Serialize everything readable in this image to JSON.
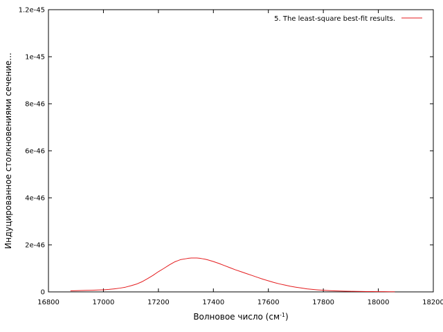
{
  "chart_data": {
    "type": "line",
    "title": "",
    "xlabel": "Волновое число (см",
    "xlabel_sup": "-1",
    "xlabel_suffix": ")",
    "ylabel": "Индуцированное столкновениями сечение...",
    "xlim": [
      16800,
      18200
    ],
    "ylim": [
      0,
      1.2e-45
    ],
    "x_ticks": [
      16800,
      17000,
      17200,
      17400,
      17600,
      17800,
      18000,
      18200
    ],
    "x_tick_labels": [
      "16800",
      "17000",
      "17200",
      "17400",
      "17600",
      "17800",
      "18000",
      "18200"
    ],
    "y_ticks": [
      0,
      2e-46,
      4e-46,
      6e-46,
      8e-46,
      1e-45,
      1.2e-45
    ],
    "y_tick_labels": [
      "0",
      "2e-46",
      "4e-46",
      "6e-46",
      "8e-46",
      "1e-45",
      "1.2e-45"
    ],
    "grid": false,
    "legend_position": "top-right",
    "series": [
      {
        "name": "5.  The least-square best-fit results.",
        "color": "#e41a1c",
        "x": [
          16880,
          16900,
          16920,
          16940,
          16960,
          16980,
          17000,
          17020,
          17040,
          17060,
          17080,
          17100,
          17120,
          17140,
          17160,
          17180,
          17200,
          17220,
          17240,
          17260,
          17280,
          17300,
          17310,
          17320,
          17330,
          17340,
          17350,
          17360,
          17370,
          17380,
          17400,
          17420,
          17440,
          17460,
          17480,
          17500,
          17520,
          17540,
          17560,
          17580,
          17600,
          17620,
          17640,
          17660,
          17680,
          17700,
          17720,
          17740,
          17760,
          17780,
          17800,
          17820,
          17840,
          17860,
          17880,
          17900,
          17920,
          17940,
          17960,
          17980,
          18000,
          18020,
          18040,
          18060
        ],
        "y": [
          4.5e-48,
          5e-48,
          6e-48,
          6.5e-48,
          7e-48,
          8e-48,
          9e-48,
          1.05e-47,
          1.3e-47,
          1.6e-47,
          2e-47,
          2.6e-47,
          3.3e-47,
          4.3e-47,
          5.6e-47,
          7e-47,
          8.6e-47,
          1e-46,
          1.15e-46,
          1.28e-46,
          1.37e-46,
          1.41e-46,
          1.43e-46,
          1.44e-46,
          1.44e-46,
          1.44e-46,
          1.43e-46,
          1.41e-46,
          1.39e-46,
          1.36e-46,
          1.29e-46,
          1.21e-46,
          1.12e-46,
          1.03e-46,
          9.4e-47,
          8.6e-47,
          7.8e-47,
          7e-47,
          6.2e-47,
          5.4e-47,
          4.7e-47,
          4e-47,
          3.4e-47,
          2.9e-47,
          2.4e-47,
          2e-47,
          1.65e-47,
          1.3e-47,
          1.05e-47,
          8.5e-48,
          7e-48,
          5.5e-48,
          4.3e-48,
          3.6e-48,
          3e-48,
          2.5e-48,
          2.1e-48,
          1.8e-48,
          1.5e-48,
          1.3e-48,
          1.15e-48,
          1e-48,
          9e-49,
          8e-49
        ]
      }
    ]
  }
}
